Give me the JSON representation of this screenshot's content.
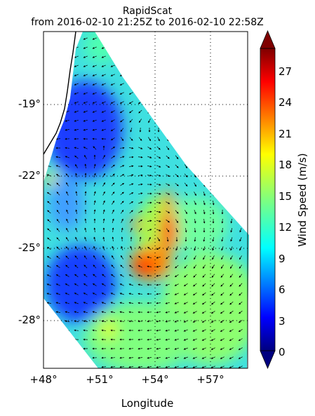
{
  "title": {
    "line1": "RapidScat",
    "line2": "from 2016-02-10 21:25Z to 2016-02-10 22:58Z"
  },
  "axes": {
    "xlabel": "Longitude",
    "xticks": [
      "+48°",
      "+51°",
      "+54°",
      "+57°"
    ],
    "yticks": [
      "-19°",
      "-22°",
      "-25°",
      "-28°"
    ],
    "lon_range": [
      48,
      56.6
    ],
    "lat_range": [
      -30,
      -16
    ]
  },
  "colorbar": {
    "label": "Wind Speed (m/s)",
    "ticks": [
      "0",
      "3",
      "6",
      "9",
      "12",
      "15",
      "18",
      "21",
      "24",
      "27"
    ],
    "range": [
      0,
      29
    ],
    "colormap": "jet"
  },
  "map_features": {
    "coastline": "Madagascar east coast",
    "gridlines": "dotted",
    "high_wind_core": "cyclone south-east of Madagascar near 53-54°E, 25°S",
    "colors": {
      "low": "#00007f",
      "mid": "#7fff7f",
      "high": "#7f0000"
    }
  }
}
